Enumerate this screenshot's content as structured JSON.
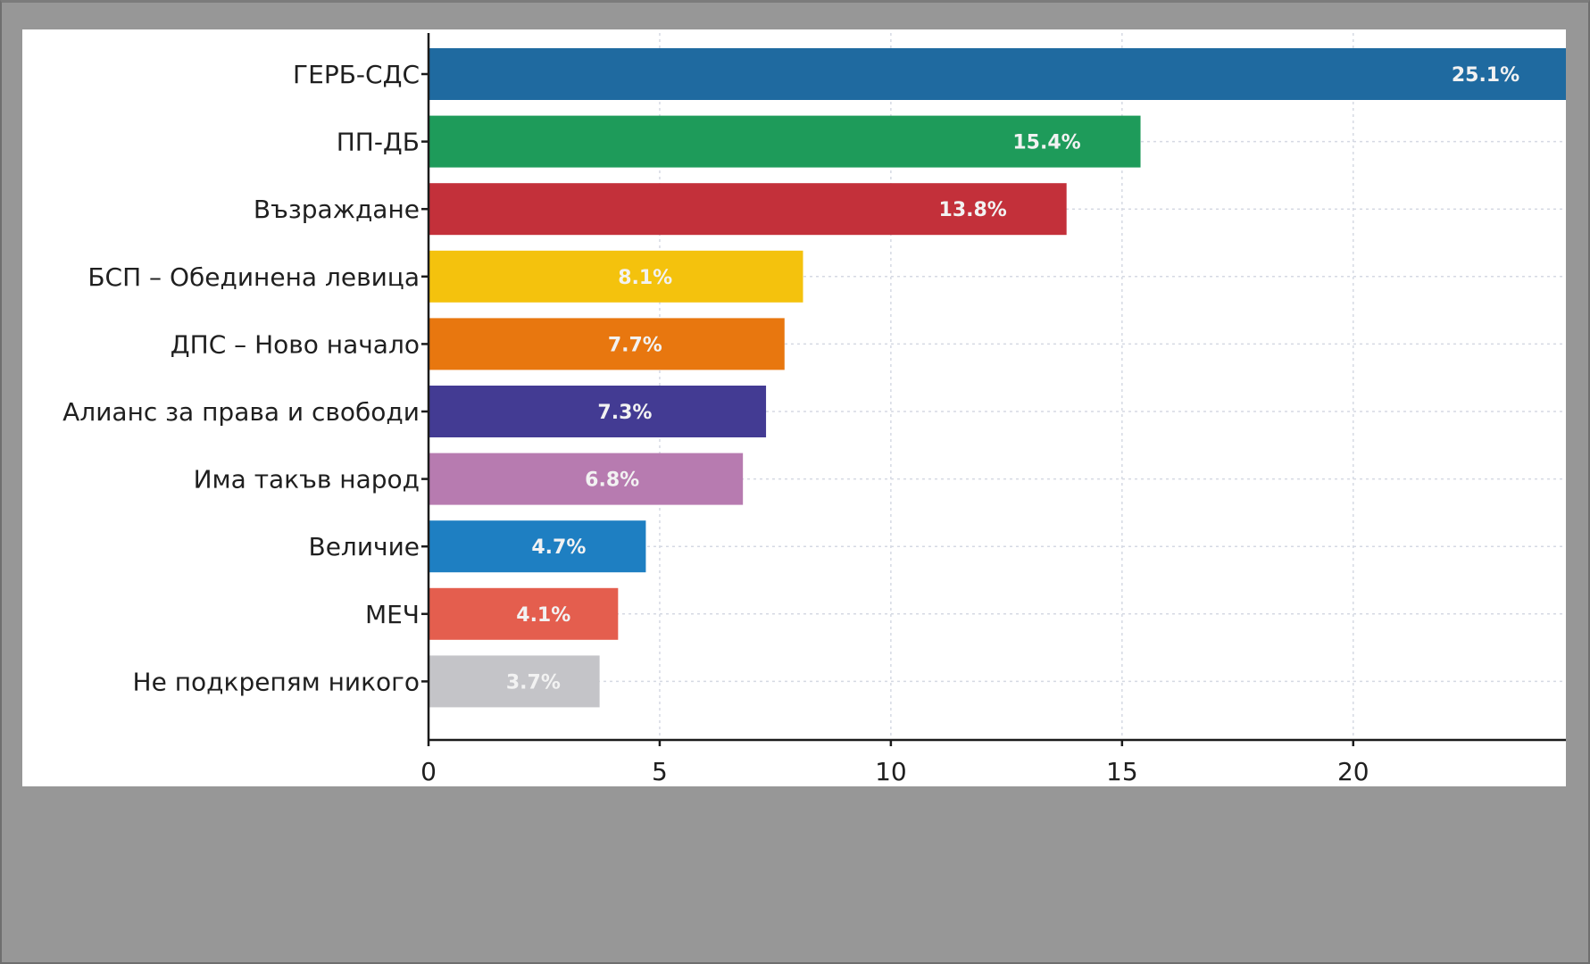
{
  "chart_data": {
    "type": "bar",
    "orientation": "horizontal",
    "title": "",
    "xlabel": "",
    "ylabel": "",
    "grid": true,
    "xlim": [
      0,
      24.6
    ],
    "x_ticks": [
      0,
      5,
      10,
      15,
      20
    ],
    "x_tick_labels": [
      "0",
      "5",
      "10",
      "15",
      "20"
    ],
    "categories": [
      "ГЕРБ-СДС",
      "ПП-ДБ",
      "Възраждане",
      "БСП – Обединена левица",
      "ДПС – Ново начало",
      "Алианс за права и свободи",
      "Има такъв народ",
      "Величие",
      "МЕЧ",
      "Не подкрепям никого"
    ],
    "values": [
      25.1,
      15.4,
      13.8,
      8.1,
      7.7,
      7.3,
      6.8,
      4.7,
      4.1,
      3.7
    ],
    "data_labels": [
      "25.1%",
      "15.4%",
      "13.8%",
      "8.1%",
      "7.7%",
      "7.3%",
      "6.8%",
      "4.7%",
      "4.1%",
      "3.7%"
    ],
    "colors": [
      "#1f6aa0",
      "#1e9b5a",
      "#c3303a",
      "#f4c20d",
      "#e8770f",
      "#433b93",
      "#b77bb0",
      "#1e7fc2",
      "#e45e4e",
      "#c4c4c8"
    ]
  }
}
